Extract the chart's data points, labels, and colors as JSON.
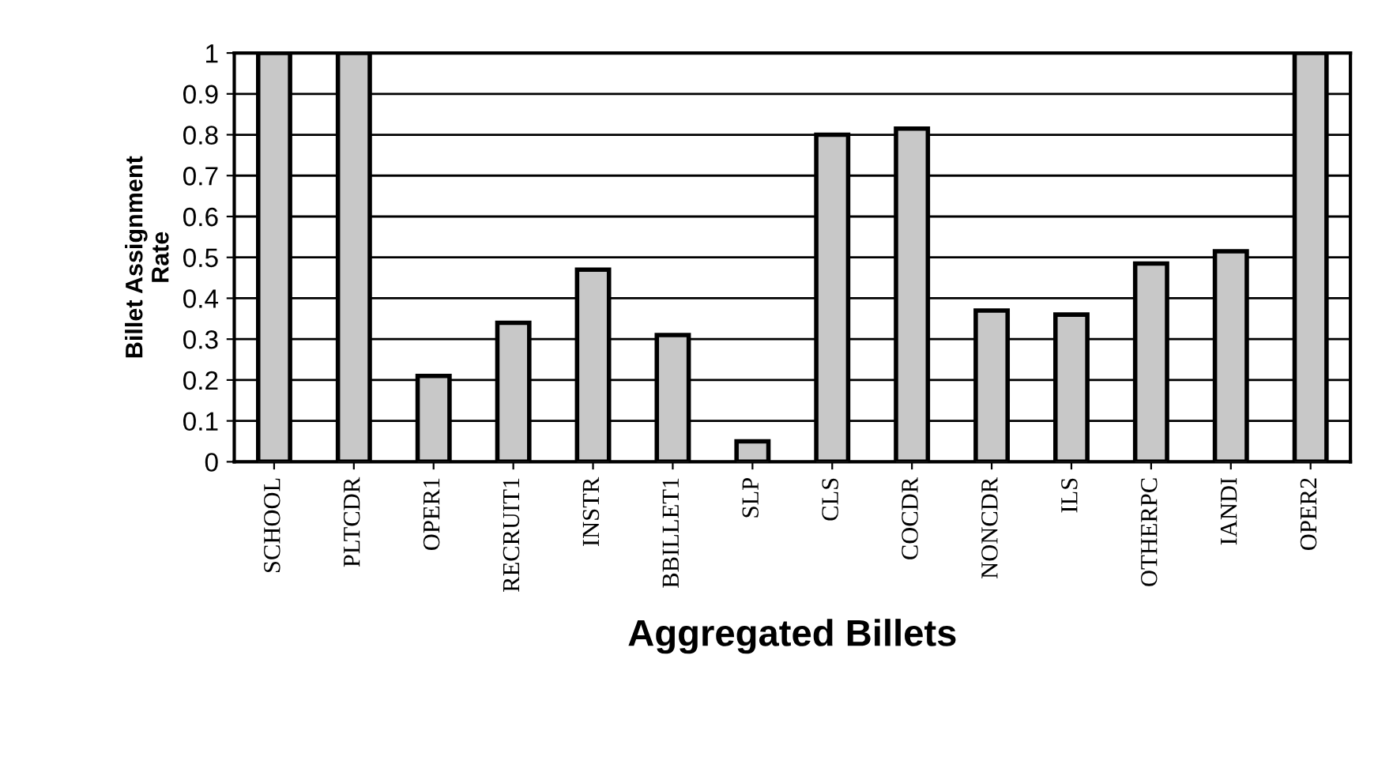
{
  "chart_data": {
    "type": "bar",
    "xlabel": "Aggregated Billets",
    "ylabel": "Billet Assignment\nRate",
    "categories": [
      "SCHOOL",
      "PLTCDR",
      "OPER1",
      "RECRUIT1",
      "INSTR",
      "BBILLET1",
      "SLP",
      "CLS",
      "COCDR",
      "NONCDR",
      "ILS",
      "OTHERPC",
      "IANDI",
      "OPER2"
    ],
    "values": [
      1.0,
      1.0,
      0.21,
      0.34,
      0.47,
      0.31,
      0.05,
      0.8,
      0.815,
      0.37,
      0.36,
      0.485,
      0.515,
      1.0
    ],
    "color": "#c8c8c8",
    "ylim": [
      0,
      1
    ],
    "yticks": [
      0,
      0.1,
      0.2,
      0.3,
      0.4,
      0.5,
      0.6,
      0.7,
      0.8,
      0.9,
      1
    ],
    "grid": "y"
  }
}
